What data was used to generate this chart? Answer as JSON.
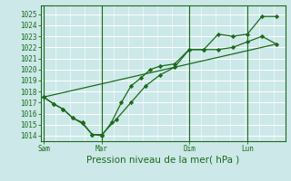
{
  "background_color": "#cce8e8",
  "grid_color": "#aadddd",
  "line_color": "#1a6b1a",
  "marker_color": "#1a6b1a",
  "xlabel": "Pression niveau de la mer( hPa )",
  "ylim": [
    1013.5,
    1025.8
  ],
  "yticks": [
    1014,
    1015,
    1016,
    1017,
    1018,
    1019,
    1020,
    1021,
    1022,
    1023,
    1024,
    1025
  ],
  "day_labels": [
    "Sam",
    "Mar",
    "Dim",
    "Lun"
  ],
  "day_positions": [
    0.0,
    2.0,
    5.0,
    7.0
  ],
  "xlim": [
    -0.1,
    8.3
  ],
  "line1_x": [
    0.0,
    0.33,
    0.67,
    1.0,
    1.33,
    1.67,
    2.0,
    2.5,
    3.0,
    3.5,
    4.0,
    4.5,
    5.0,
    5.5,
    6.0,
    6.5,
    7.0,
    7.5,
    8.0
  ],
  "line1_y": [
    1017.5,
    1016.9,
    1016.4,
    1015.6,
    1015.1,
    1014.1,
    1014.1,
    1015.5,
    1017.0,
    1018.5,
    1019.5,
    1020.2,
    1021.8,
    1021.8,
    1021.8,
    1022.0,
    1022.5,
    1023.0,
    1022.3
  ],
  "line2_x": [
    0.0,
    0.33,
    0.67,
    1.0,
    1.33,
    1.67,
    2.0,
    2.33,
    2.67,
    3.0,
    3.33,
    3.67,
    4.0,
    4.5,
    5.0,
    5.5,
    6.0,
    6.5,
    7.0,
    7.5,
    8.0
  ],
  "line2_y": [
    1017.5,
    1016.9,
    1016.4,
    1015.6,
    1015.2,
    1014.1,
    1014.0,
    1015.2,
    1017.0,
    1018.5,
    1019.2,
    1020.0,
    1020.3,
    1020.5,
    1021.8,
    1021.8,
    1023.2,
    1023.0,
    1023.2,
    1024.8,
    1024.8
  ],
  "line3_x": [
    0.0,
    8.0
  ],
  "line3_y": [
    1017.5,
    1022.3
  ],
  "tick_fontsize": 5.5,
  "label_fontsize": 7.5
}
